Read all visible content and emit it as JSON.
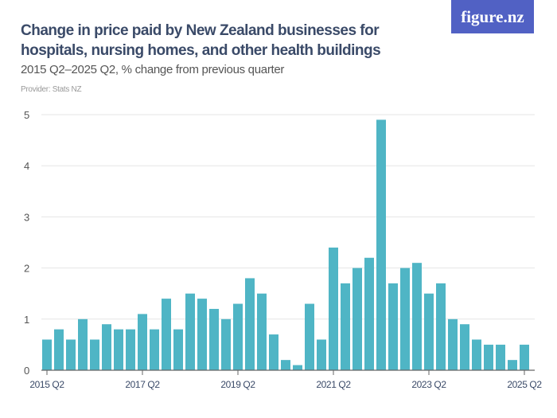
{
  "header": {
    "title": "Change in price paid by New Zealand businesses for hospitals, nursing homes, and other health buildings",
    "subtitle": "2015 Q2–2025 Q2, % change from previous quarter",
    "provider": "Provider: Stats NZ",
    "logo": "figure.nz"
  },
  "colors": {
    "bar": "#4fb5c5",
    "grid": "#e5e5e5",
    "axis": "#666666",
    "logo_bg": "#5161c4"
  },
  "chart_data": {
    "type": "bar",
    "title": "Change in price paid by New Zealand businesses for hospitals, nursing homes, and other health buildings",
    "subtitle": "2015 Q2–2025 Q2, % change from previous quarter",
    "categories": [
      "2015 Q2",
      "2015 Q3",
      "2015 Q4",
      "2016 Q1",
      "2016 Q2",
      "2016 Q3",
      "2016 Q4",
      "2017 Q1",
      "2017 Q2",
      "2017 Q3",
      "2017 Q4",
      "2018 Q1",
      "2018 Q2",
      "2018 Q3",
      "2018 Q4",
      "2019 Q1",
      "2019 Q2",
      "2019 Q3",
      "2019 Q4",
      "2020 Q1",
      "2020 Q2",
      "2020 Q3",
      "2020 Q4",
      "2021 Q1",
      "2021 Q2",
      "2021 Q3",
      "2021 Q4",
      "2022 Q1",
      "2022 Q2",
      "2022 Q3",
      "2022 Q4",
      "2023 Q1",
      "2023 Q2",
      "2023 Q3",
      "2023 Q4",
      "2024 Q1",
      "2024 Q2",
      "2024 Q3",
      "2024 Q4",
      "2025 Q1",
      "2025 Q2"
    ],
    "values": [
      0.6,
      0.8,
      0.6,
      1.0,
      0.6,
      0.9,
      0.8,
      0.8,
      1.1,
      0.8,
      1.4,
      0.8,
      1.5,
      1.4,
      1.2,
      1.0,
      1.3,
      1.8,
      1.5,
      0.7,
      0.2,
      0.1,
      1.3,
      0.6,
      2.4,
      1.7,
      2.0,
      2.2,
      4.9,
      1.7,
      2.0,
      2.1,
      1.5,
      1.7,
      1.0,
      0.9,
      0.6,
      0.5,
      0.5,
      0.2,
      0.5
    ],
    "xtick_labels": [
      "2015 Q2",
      "2017 Q2",
      "2019 Q2",
      "2021 Q2",
      "2023 Q2",
      "2025 Q2"
    ],
    "ytick_labels": [
      "0",
      "1",
      "2",
      "3",
      "4",
      "5"
    ],
    "ylim": [
      0,
      5
    ],
    "grid": true,
    "xlabel": "",
    "ylabel": ""
  }
}
